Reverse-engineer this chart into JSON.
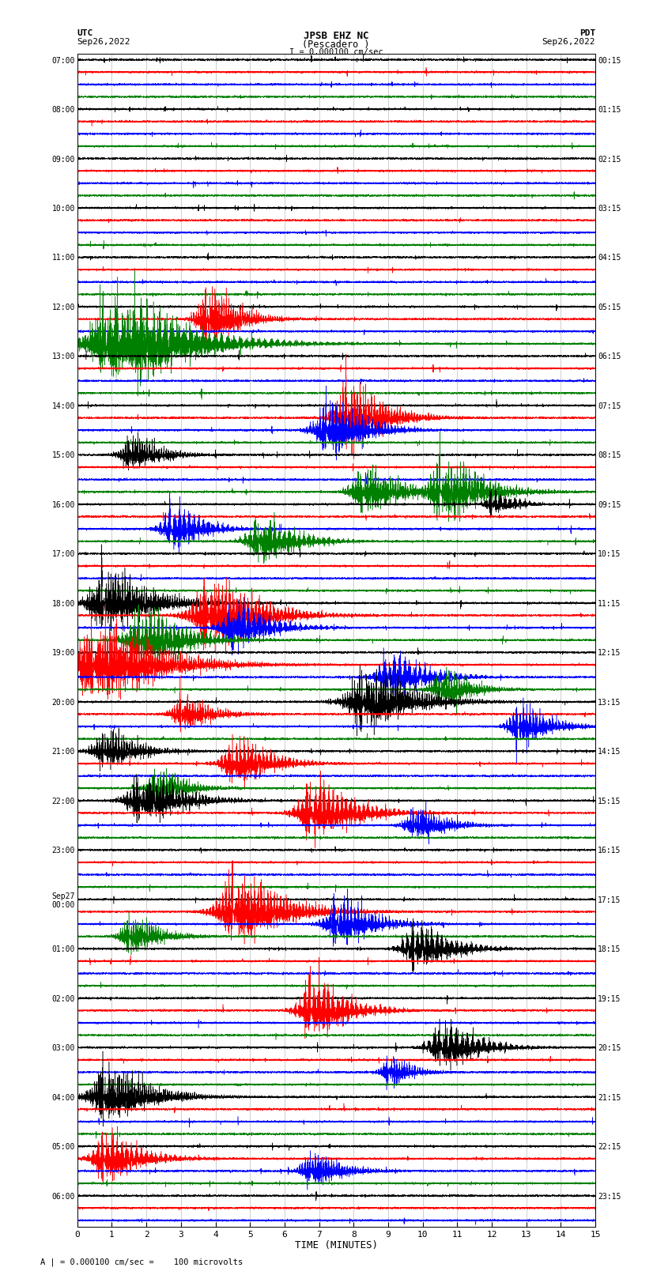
{
  "title_line1": "JPSB EHZ NC",
  "title_line2": "(Pescadero )",
  "scale_text": "I = 0.000100 cm/sec",
  "footer_text": "A | = 0.000100 cm/sec =    100 microvolts",
  "xlabel": "TIME (MINUTES)",
  "left_label_utc": "UTC",
  "left_label_date": "Sep26,2022",
  "right_label_pdt": "PDT",
  "right_label_date": "Sep26,2022",
  "bg_color": "#ffffff",
  "trace_colors": [
    "black",
    "red",
    "blue",
    "green"
  ],
  "utc_times": [
    "07:00",
    "",
    "",
    "",
    "08:00",
    "",
    "",
    "",
    "09:00",
    "",
    "",
    "",
    "10:00",
    "",
    "",
    "",
    "11:00",
    "",
    "",
    "",
    "12:00",
    "",
    "",
    "",
    "13:00",
    "",
    "",
    "",
    "14:00",
    "",
    "",
    "",
    "15:00",
    "",
    "",
    "",
    "16:00",
    "",
    "",
    "",
    "17:00",
    "",
    "",
    "",
    "18:00",
    "",
    "",
    "",
    "19:00",
    "",
    "",
    "",
    "20:00",
    "",
    "",
    "",
    "21:00",
    "",
    "",
    "",
    "22:00",
    "",
    "",
    "",
    "23:00",
    "",
    "",
    "",
    "Sep27\n00:00",
    "",
    "",
    "",
    "01:00",
    "",
    "",
    "",
    "02:00",
    "",
    "",
    "",
    "03:00",
    "",
    "",
    "",
    "04:00",
    "",
    "",
    "",
    "05:00",
    "",
    "",
    "",
    "06:00",
    "",
    ""
  ],
  "pdt_times": [
    "00:15",
    "",
    "",
    "",
    "01:15",
    "",
    "",
    "",
    "02:15",
    "",
    "",
    "",
    "03:15",
    "",
    "",
    "",
    "04:15",
    "",
    "",
    "",
    "05:15",
    "",
    "",
    "",
    "06:15",
    "",
    "",
    "",
    "07:15",
    "",
    "",
    "",
    "08:15",
    "",
    "",
    "",
    "09:15",
    "",
    "",
    "",
    "10:15",
    "",
    "",
    "",
    "11:15",
    "",
    "",
    "",
    "12:15",
    "",
    "",
    "",
    "13:15",
    "",
    "",
    "",
    "14:15",
    "",
    "",
    "",
    "15:15",
    "",
    "",
    "",
    "16:15",
    "",
    "",
    "",
    "17:15",
    "",
    "",
    "",
    "18:15",
    "",
    "",
    "",
    "19:15",
    "",
    "",
    "",
    "20:15",
    "",
    "",
    "",
    "21:15",
    "",
    "",
    "",
    "22:15",
    "",
    "",
    "",
    "23:15",
    "",
    ""
  ],
  "num_traces": 95,
  "xmin": 0,
  "xmax": 15,
  "xticks": [
    0,
    1,
    2,
    3,
    4,
    5,
    6,
    7,
    8,
    9,
    10,
    11,
    12,
    13,
    14,
    15
  ],
  "grid_color": "#999999"
}
